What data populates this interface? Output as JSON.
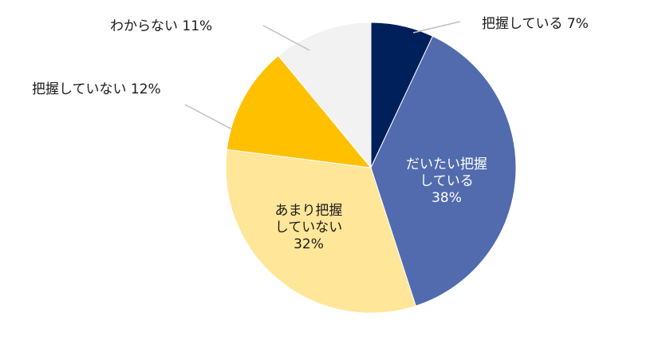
{
  "chart_data": {
    "type": "pie",
    "title": "",
    "start_angle_deg": 0,
    "direction": "clockwise",
    "slices": [
      {
        "label": "把握している",
        "value": 7,
        "display": "把握している 7%",
        "color": "#00205B",
        "label_position": "outside"
      },
      {
        "label": "だいたい把握している",
        "value": 38,
        "display_lines": [
          "だいたい把握",
          "している",
          "38%"
        ],
        "color": "#516BAE",
        "label_color": "#ffffff",
        "label_position": "inside"
      },
      {
        "label": "あまり把握していない",
        "value": 32,
        "display_lines": [
          "あまり把握",
          "していない",
          "32%"
        ],
        "color": "#FFE699",
        "label_color": "#1a1a1a",
        "label_position": "inside"
      },
      {
        "label": "把握していない",
        "value": 12,
        "display": "把握していない 12%",
        "color": "#FFC000",
        "label_position": "outside"
      },
      {
        "label": "わからない",
        "value": 11,
        "display": "わからない 11%",
        "color": "#F2F2F2",
        "label_position": "outside"
      }
    ],
    "legend": "none",
    "leader_line_color": "#bfbfbf"
  },
  "labels": {
    "haaku": "把握している 7%",
    "daitai_l1": "だいたい把握",
    "daitai_l2": "している",
    "daitai_l3": "38%",
    "amari_l1": "あまり把握",
    "amari_l2": "していない",
    "amari_l3": "32%",
    "nai": "把握していない 12%",
    "wakaranai": "わからない 11%"
  }
}
